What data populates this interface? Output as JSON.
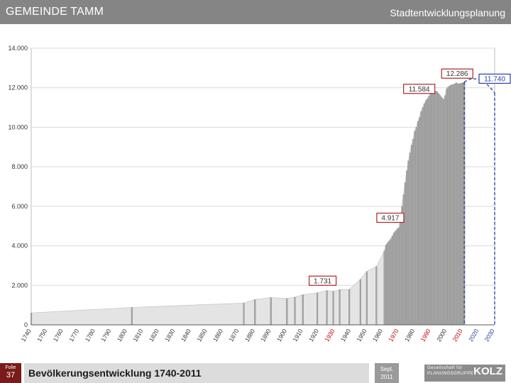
{
  "header": {
    "title": "GEMEINDE TAMM",
    "subtitle": "Stadtentwicklungsplanung"
  },
  "footer": {
    "folie_label": "Folie",
    "folie_number": "37",
    "caption": "Bevölkerungsentwicklung 1740-2011",
    "date_line1": "Sept.",
    "date_line2": "2011",
    "logo_line1": "Gesellschaft für",
    "logo_line2": "PLANUNGSGRUPPE",
    "logo_name": "KOLZ"
  },
  "colors": {
    "header": "#858585",
    "bar": "#a6a6a6",
    "area": "#e4e4e4",
    "callout_border": "#b22222",
    "forecast": "#2a3fa0",
    "red_tick": "#c00000",
    "footer_bar": "#dcdcdc",
    "folie_box": "#7a1a1a"
  },
  "chart_data": {
    "type": "bar",
    "title": "",
    "xlabel": "",
    "ylabel": "",
    "xlim": [
      1740,
      2030
    ],
    "ylim": [
      0,
      14000
    ],
    "grid": true,
    "y_ticks": [
      "0",
      "2.000",
      "4.000",
      "6.000",
      "8.000",
      "10.000",
      "12.000",
      "14.000"
    ],
    "x_ticks": [
      {
        "label": "1740",
        "color": "black"
      },
      {
        "label": "1750",
        "color": "black"
      },
      {
        "label": "1760",
        "color": "black"
      },
      {
        "label": "1770",
        "color": "black"
      },
      {
        "label": "1780",
        "color": "black"
      },
      {
        "label": "1790",
        "color": "black"
      },
      {
        "label": "1800",
        "color": "black"
      },
      {
        "label": "1810",
        "color": "black"
      },
      {
        "label": "1820",
        "color": "black"
      },
      {
        "label": "1830",
        "color": "black"
      },
      {
        "label": "1840",
        "color": "black"
      },
      {
        "label": "1850",
        "color": "black"
      },
      {
        "label": "1860",
        "color": "black"
      },
      {
        "label": "1870",
        "color": "black"
      },
      {
        "label": "1880",
        "color": "black"
      },
      {
        "label": "1890",
        "color": "black"
      },
      {
        "label": "1900",
        "color": "black"
      },
      {
        "label": "1910",
        "color": "black"
      },
      {
        "label": "1920",
        "color": "black"
      },
      {
        "label": "1930",
        "color": "red"
      },
      {
        "label": "1940",
        "color": "black"
      },
      {
        "label": "1950",
        "color": "black"
      },
      {
        "label": "1960",
        "color": "black"
      },
      {
        "label": "1970",
        "color": "red"
      },
      {
        "label": "1980",
        "color": "black"
      },
      {
        "label": "1990",
        "color": "red"
      },
      {
        "label": "2000",
        "color": "black"
      },
      {
        "label": "2010",
        "color": "red"
      },
      {
        "label": "2020",
        "color": "blue"
      },
      {
        "label": "2030",
        "color": "blue"
      }
    ],
    "population": {
      "x": [
        1740,
        1803,
        1873,
        1880,
        1890,
        1900,
        1905,
        1910,
        1919,
        1925,
        1929,
        1933,
        1939,
        1946,
        1950,
        1956,
        1961,
        1962,
        1963,
        1964,
        1965,
        1966,
        1967,
        1968,
        1969,
        1970,
        1971,
        1972,
        1973,
        1974,
        1975,
        1976,
        1977,
        1978,
        1979,
        1980,
        1981,
        1982,
        1983,
        1984,
        1985,
        1986,
        1987,
        1988,
        1989,
        1990,
        1991,
        1992,
        1993,
        1994,
        1995,
        1996,
        1997,
        1998,
        1999,
        2000,
        2001,
        2002,
        2003,
        2004,
        2005,
        2006,
        2007,
        2008,
        2009,
        2010,
        2011
      ],
      "y": [
        600,
        880,
        1100,
        1280,
        1380,
        1330,
        1400,
        1520,
        1620,
        1731,
        1700,
        1780,
        1790,
        2300,
        2700,
        2950,
        3750,
        4050,
        4150,
        4250,
        4350,
        4500,
        4650,
        4750,
        4850,
        4917,
        5350,
        6000,
        6600,
        7200,
        7800,
        8300,
        8700,
        9100,
        9400,
        9800,
        10000,
        10300,
        10500,
        10800,
        11000,
        11200,
        11350,
        11450,
        11584,
        11700,
        11800,
        11850,
        11820,
        11800,
        11700,
        11600,
        11500,
        11400,
        11600,
        11950,
        12050,
        12100,
        12150,
        12150,
        12200,
        12250,
        12200,
        12200,
        12230,
        12250,
        12286
      ]
    },
    "forecast": {
      "name": "",
      "x": [
        2011,
        2020,
        2030
      ],
      "y": [
        12286,
        12100,
        11740
      ]
    },
    "annotations": [
      {
        "label": "1.731",
        "x": 1925,
        "y": 1731,
        "color": "red"
      },
      {
        "label": "4.917",
        "x": 1970,
        "y": 4917,
        "color": "red"
      },
      {
        "label": "11.584",
        "x": 1989,
        "y": 11584,
        "color": "red"
      },
      {
        "label": "12.286",
        "x": 2011,
        "y": 12286,
        "color": "red"
      },
      {
        "label": "11.740",
        "x": 2030,
        "y": 11740,
        "color": "blue"
      }
    ]
  }
}
